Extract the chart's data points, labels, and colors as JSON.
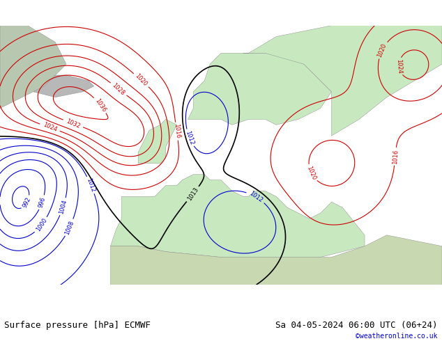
{
  "title_left": "Surface pressure [hPa] ECMWF",
  "title_right": "Sa 04-05-2024 06:00 UTC (06+24)",
  "watermark": "©weatheronline.co.uk",
  "background_ocean": "#d8d8e8",
  "background_land_europe": "#c8e8c0",
  "background_land_other": "#c8d8b0",
  "fig_width": 6.34,
  "fig_height": 4.9,
  "dpi": 100,
  "footer_bg": "#e8e8e8",
  "isobar_colors": {
    "black": "#000000",
    "red": "#cc0000",
    "blue": "#0000cc"
  },
  "font_size_footer": 9,
  "font_size_labels": 7,
  "font_size_watermark": 7
}
